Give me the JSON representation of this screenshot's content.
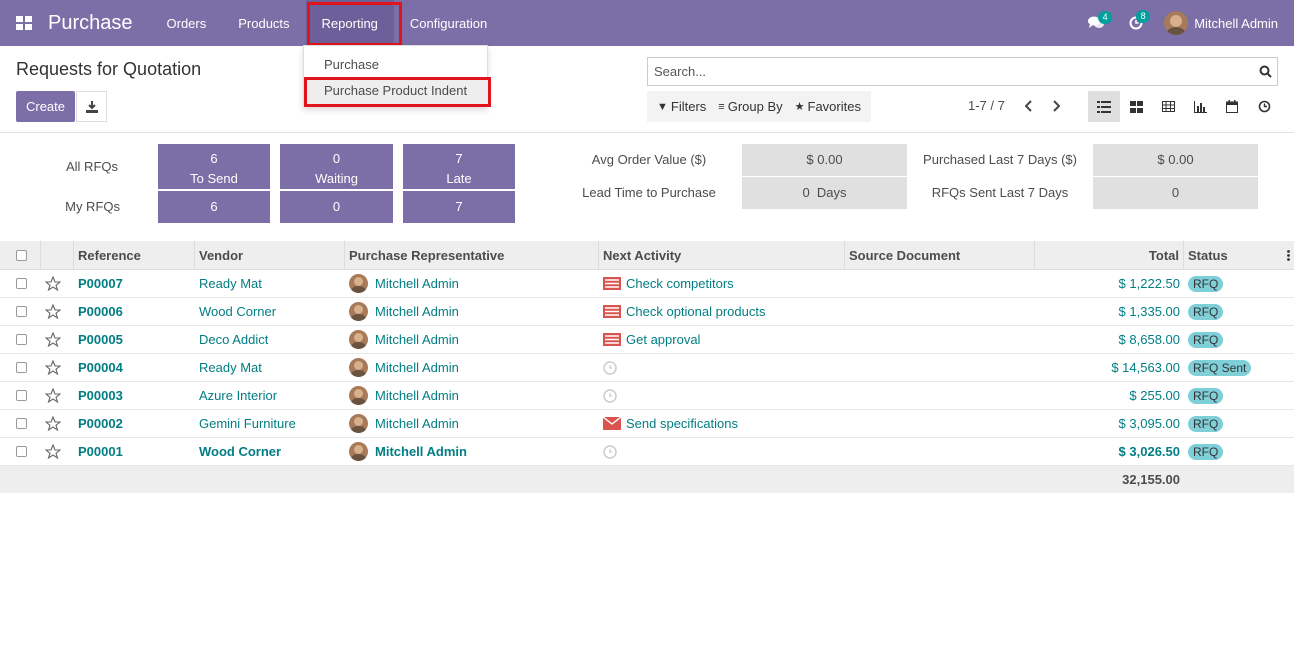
{
  "navbar": {
    "app_title": "Purchase",
    "menu": [
      "Orders",
      "Products",
      "Reporting",
      "Configuration"
    ],
    "messages_badge": "4",
    "activities_badge": "8",
    "user_name": "Mitchell Admin"
  },
  "dropdown": {
    "items": [
      "Purchase",
      "Purchase Product Indent"
    ]
  },
  "page": {
    "title": "Requests for Quotation",
    "create_label": "Create",
    "search_placeholder": "Search...",
    "filters_label": "Filters",
    "groupby_label": "Group By",
    "favorites_label": "Favorites",
    "pager": "1-7 / 7"
  },
  "dashboard": {
    "all_rfqs_label": "All RFQs",
    "my_rfqs_label": "My RFQs",
    "tiles": [
      {
        "count": "6",
        "label": "To Send",
        "mine": "6"
      },
      {
        "count": "0",
        "label": "Waiting",
        "mine": "0"
      },
      {
        "count": "7",
        "label": "Late",
        "mine": "7"
      }
    ],
    "stats": {
      "avg_order_label": "Avg Order Value ($)",
      "avg_order_value": "$ 0.00",
      "lead_time_label": "Lead Time to Purchase",
      "lead_time_value": "0  Days",
      "purchased_label": "Purchased Last 7 Days ($)",
      "purchased_value": "$ 0.00",
      "rfqs_sent_label": "RFQs Sent Last 7 Days",
      "rfqs_sent_value": "0"
    }
  },
  "table": {
    "headers": {
      "reference": "Reference",
      "vendor": "Vendor",
      "rep": "Purchase Representative",
      "activity": "Next Activity",
      "source": "Source Document",
      "total": "Total",
      "status": "Status"
    },
    "rows": [
      {
        "ref": "P00007",
        "vendor": "Ready Mat",
        "rep": "Mitchell Admin",
        "activity": "Check competitors",
        "activity_icon": "todo-icon",
        "total": "$ 1,222.50",
        "status": "RFQ",
        "bold": false
      },
      {
        "ref": "P00006",
        "vendor": "Wood Corner",
        "rep": "Mitchell Admin",
        "activity": "Check optional products",
        "activity_icon": "todo-icon",
        "total": "$ 1,335.00",
        "status": "RFQ",
        "bold": false
      },
      {
        "ref": "P00005",
        "vendor": "Deco Addict",
        "rep": "Mitchell Admin",
        "activity": "Get approval",
        "activity_icon": "todo-icon",
        "total": "$ 8,658.00",
        "status": "RFQ",
        "bold": false
      },
      {
        "ref": "P00004",
        "vendor": "Ready Mat",
        "rep": "Mitchell Admin",
        "activity": "",
        "activity_icon": "clock-icon",
        "total": "$ 14,563.00",
        "status": "RFQ Sent",
        "bold": false
      },
      {
        "ref": "P00003",
        "vendor": "Azure Interior",
        "rep": "Mitchell Admin",
        "activity": "",
        "activity_icon": "clock-icon",
        "total": "$ 255.00",
        "status": "RFQ",
        "bold": false
      },
      {
        "ref": "P00002",
        "vendor": "Gemini Furniture",
        "rep": "Mitchell Admin",
        "activity": "Send specifications",
        "activity_icon": "email-icon",
        "total": "$ 3,095.00",
        "status": "RFQ",
        "bold": false
      },
      {
        "ref": "P00001",
        "vendor": "Wood Corner",
        "rep": "Mitchell Admin",
        "activity": "",
        "activity_icon": "clock-icon",
        "total": "$ 3,026.50",
        "status": "RFQ",
        "bold": true
      }
    ],
    "sum_total": "32,155.00"
  },
  "colors": {
    "brand": "#7c6ea6",
    "link": "#017e84",
    "highlight_border": "#e0141a",
    "status_pill": "#7fcfd9"
  }
}
